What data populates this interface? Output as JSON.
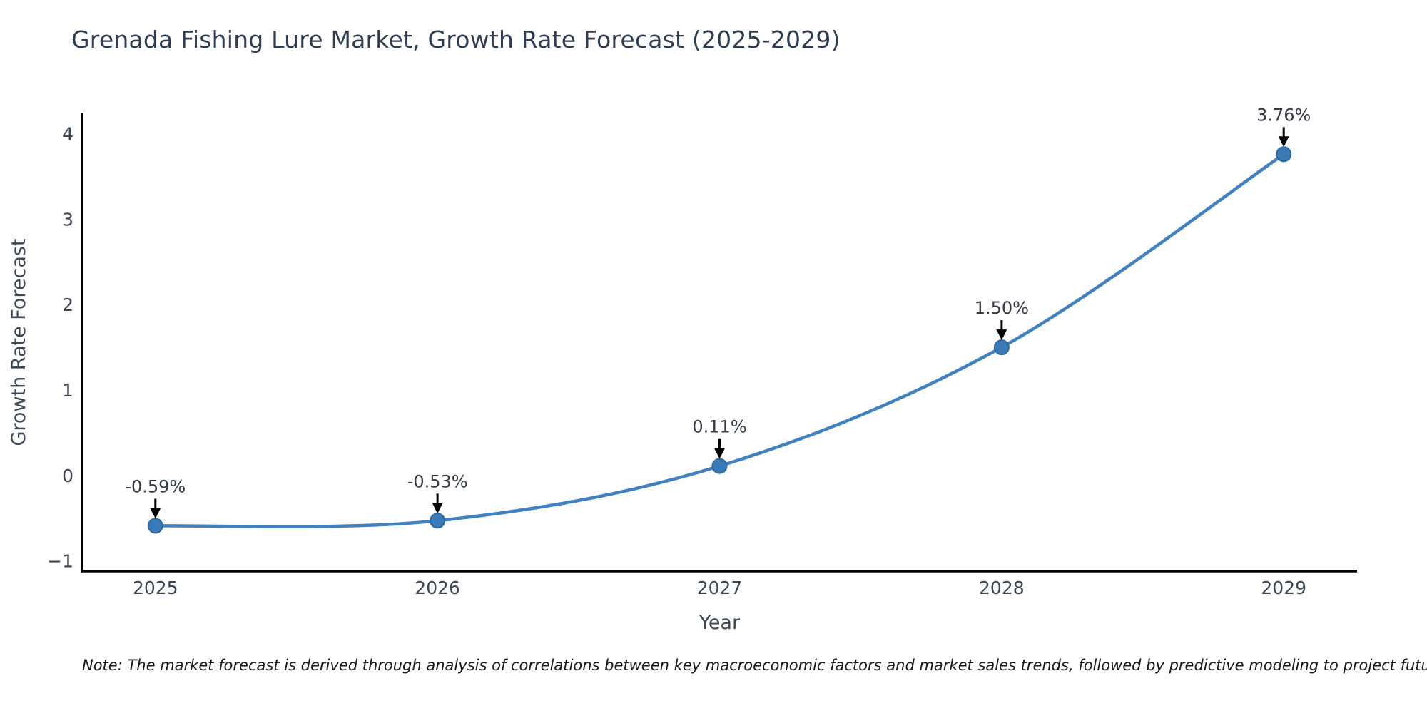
{
  "title": "Grenada Fishing Lure Market, Growth Rate Forecast (2025-2029)",
  "note": "Note: The market forecast is derived through analysis of correlations between key macroeconomic factors and market sales trends, followed by predictive modeling to project future sales",
  "colors": {
    "line": "#3f81c1",
    "marker_fill": "#3a7ab8",
    "marker_edge": "#2c699f",
    "axis": "#000000",
    "title_text": "#2e3d54",
    "tick_text": "#3d4654",
    "annotation_text": "#333a45",
    "arrow": "#000000",
    "note_text": "#15181d"
  },
  "chart_data": {
    "type": "line",
    "title": "Grenada Fishing Lure Market, Growth Rate Forecast (2025-2029)",
    "xlabel": "Year",
    "ylabel": "Growth Rate Forecast",
    "x": [
      2025,
      2026,
      2027,
      2028,
      2029
    ],
    "values": [
      -0.59,
      -0.53,
      0.11,
      1.5,
      3.76
    ],
    "point_labels": [
      "-0.59%",
      "-0.53%",
      "0.11%",
      "1.50%",
      "3.76%"
    ],
    "xtick_labels": [
      "2025",
      "2026",
      "2027",
      "2028",
      "2029"
    ],
    "yticks": [
      -1,
      0,
      1,
      2,
      3,
      4
    ],
    "ytick_labels": [
      "−1",
      "0",
      "1",
      "2",
      "3",
      "4"
    ],
    "xlim": [
      2024.74,
      2029.26
    ],
    "ylim": [
      -1.12,
      4.23
    ],
    "grid": false,
    "legend": null,
    "line_shape": "spline",
    "markers": true,
    "annotation_style": "value label above each point with downward arrow"
  }
}
